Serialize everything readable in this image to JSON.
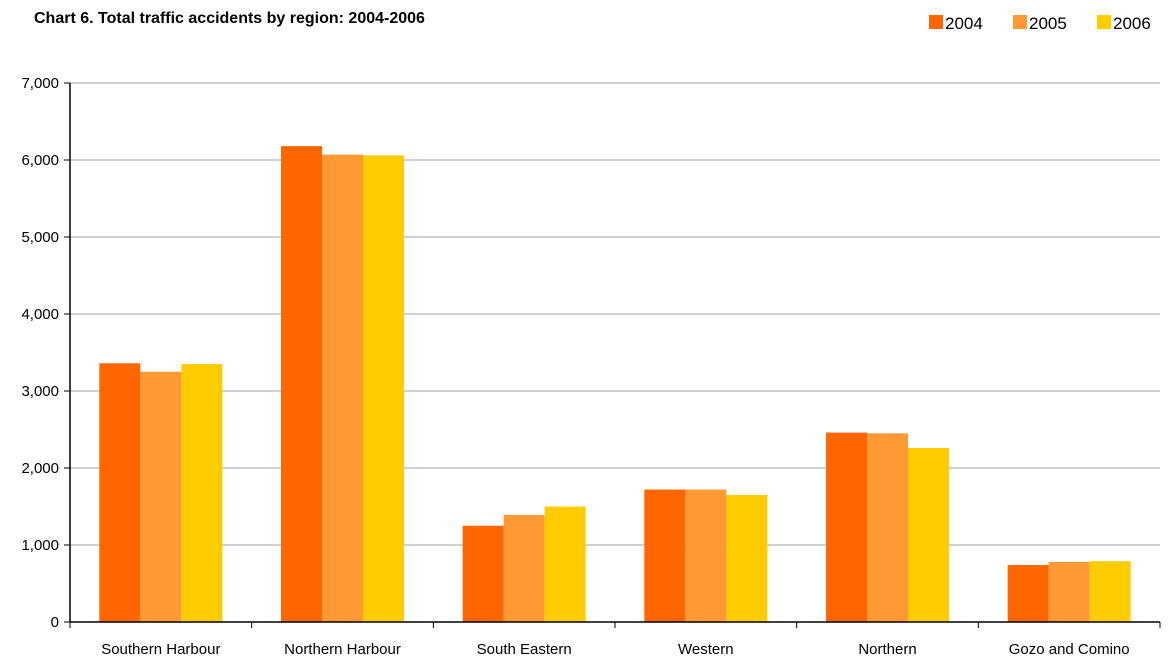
{
  "chart_data": {
    "type": "bar",
    "title": "Chart 6. Total traffic accidents by region: 2004-2006",
    "xlabel": "",
    "ylabel": "",
    "ylim": [
      0,
      7000
    ],
    "yticks": [
      "0",
      "1,000",
      "2,000",
      "3,000",
      "4,000",
      "5,000",
      "6,000",
      "7,000"
    ],
    "ytick_values": [
      0,
      1000,
      2000,
      3000,
      4000,
      5000,
      6000,
      7000
    ],
    "grid": true,
    "legend_position": "top-right",
    "categories": [
      "Southern Harbour",
      "Northern Harbour",
      "South Eastern",
      "Western",
      "Northern",
      "Gozo and Comino"
    ],
    "series": [
      {
        "name": "2004",
        "color": "#ff6600",
        "values": [
          3360,
          6180,
          1250,
          1720,
          2460,
          740
        ]
      },
      {
        "name": "2005",
        "color": "#ff9933",
        "values": [
          3250,
          6070,
          1390,
          1720,
          2450,
          780
        ]
      },
      {
        "name": "2006",
        "color": "#ffcc00",
        "values": [
          3350,
          6060,
          1500,
          1650,
          2260,
          790
        ]
      }
    ]
  }
}
